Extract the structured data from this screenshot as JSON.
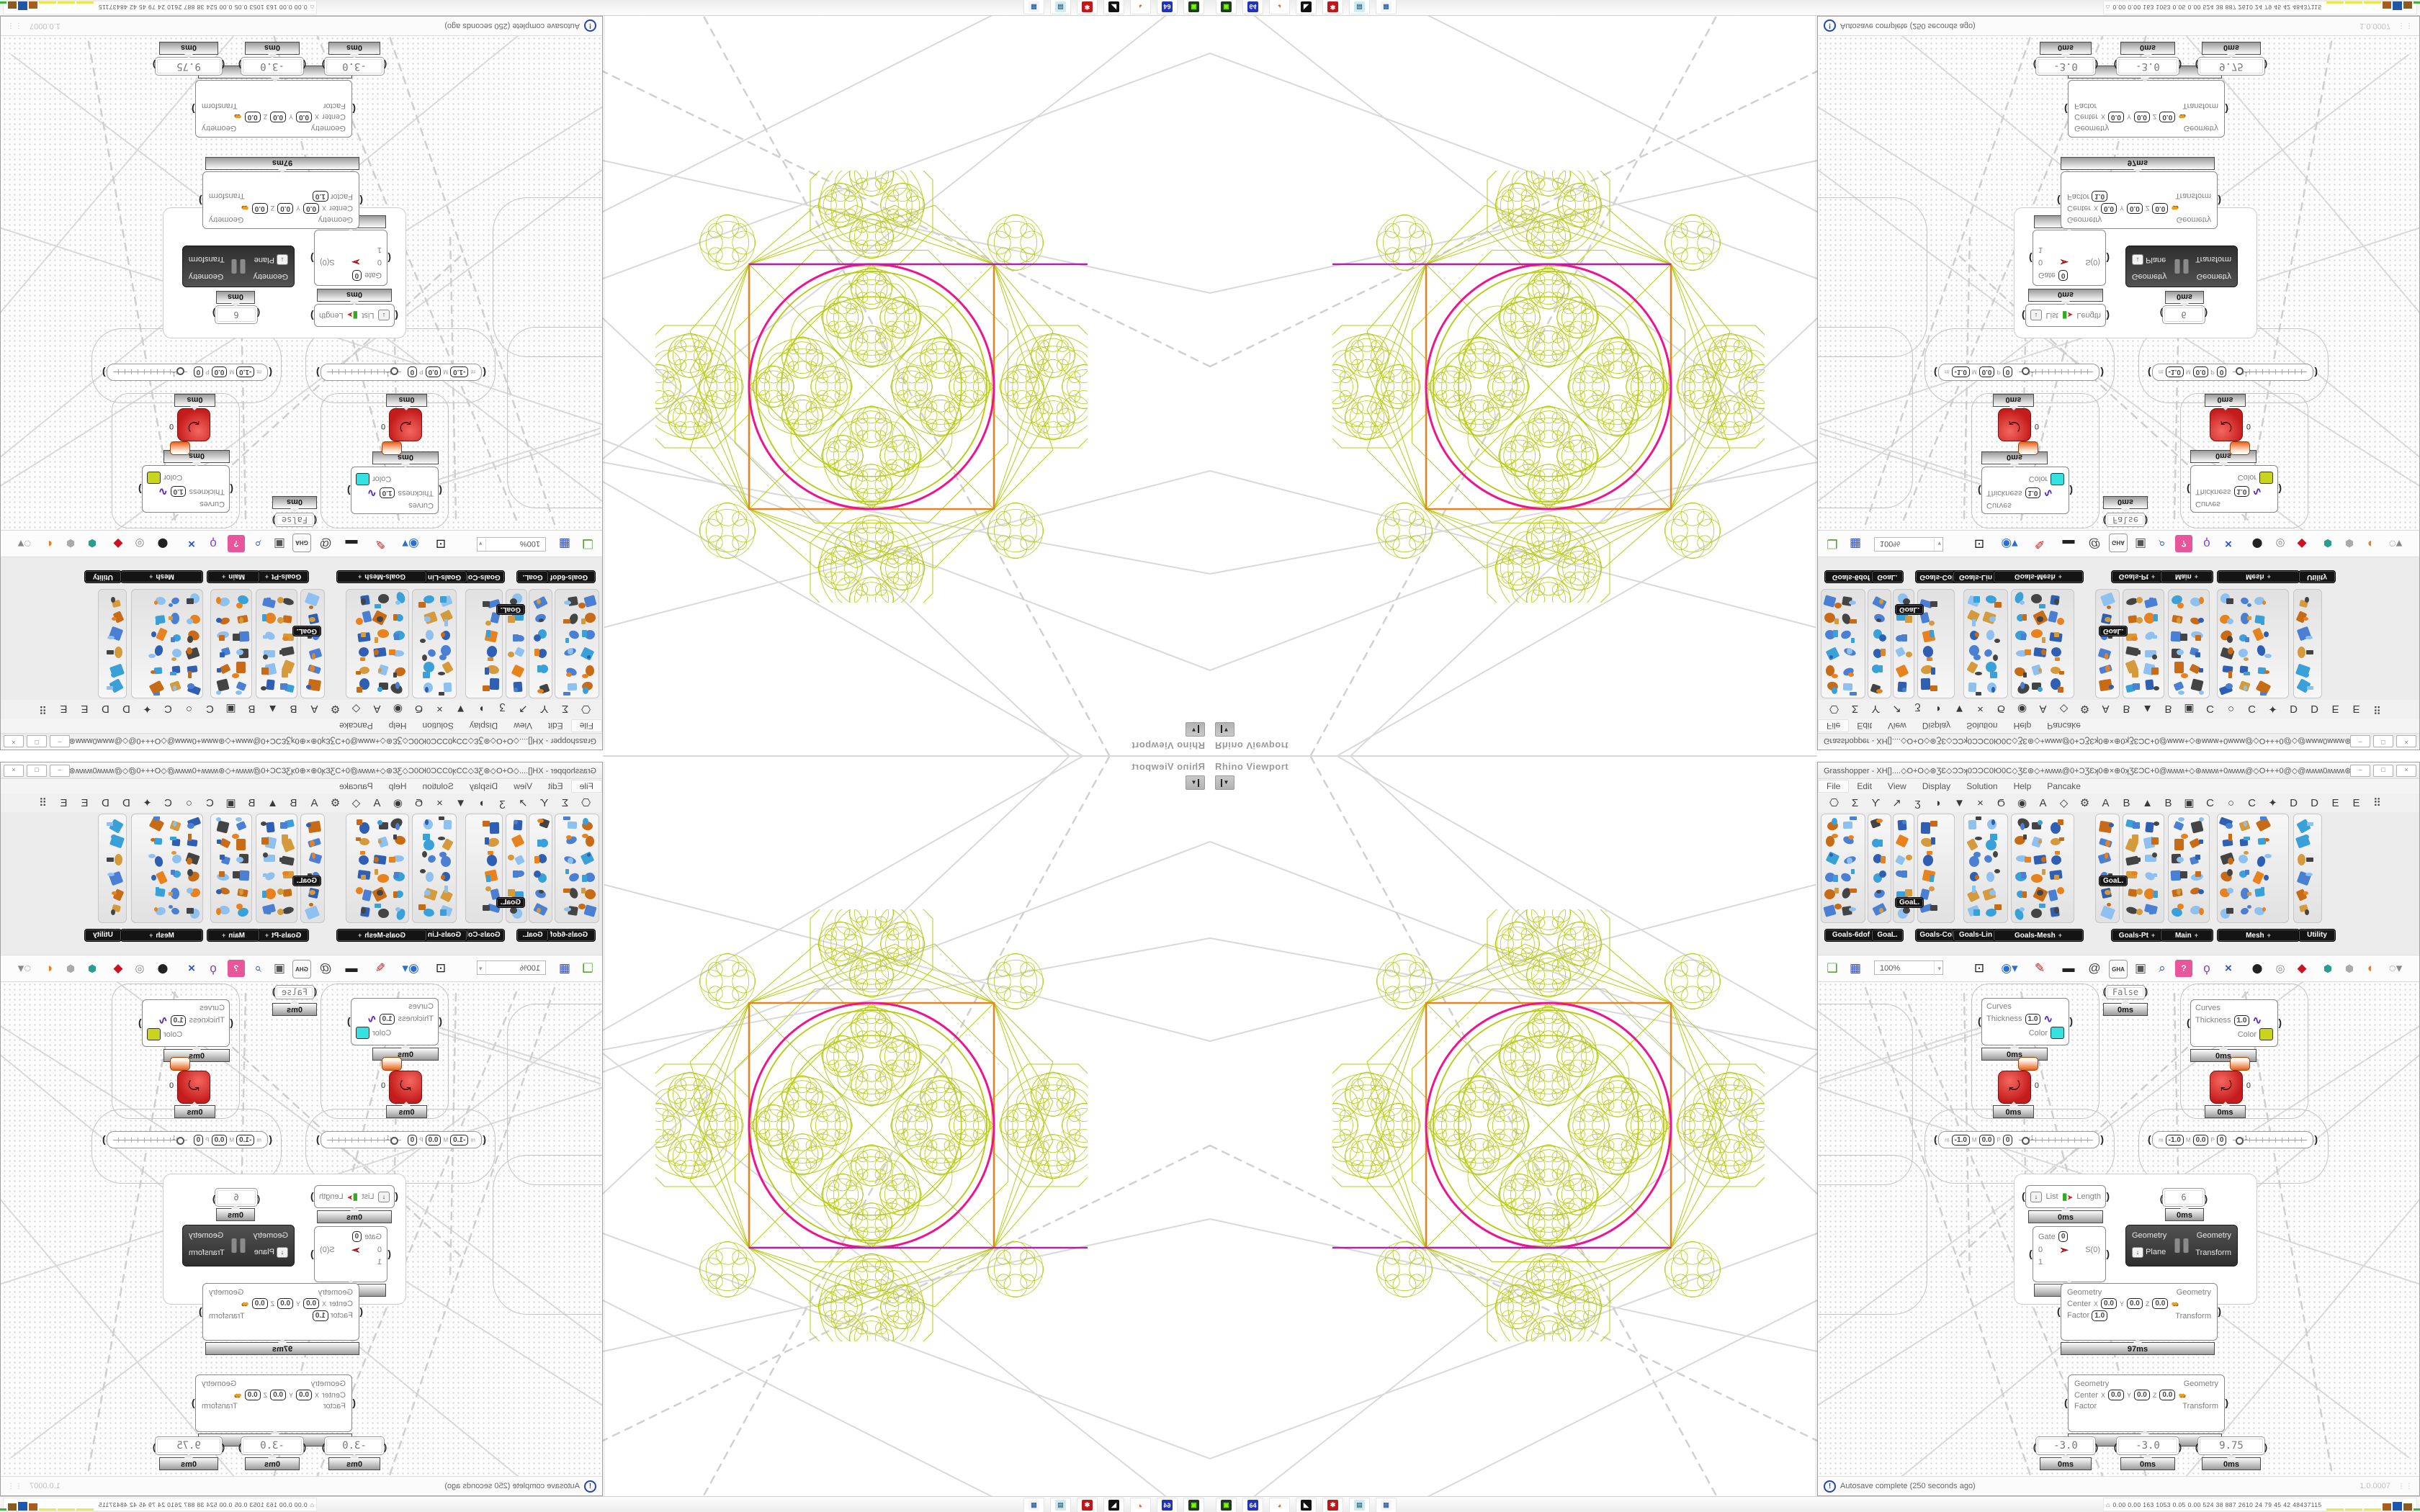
{
  "viewport": {
    "label": "Rhino Viewport",
    "geometry": {
      "green": "#b7cc16",
      "magenta": "#ee1490",
      "orange": "#e8821e",
      "purple": "#a826a8"
    }
  },
  "gh_window": {
    "title": "Grasshopper - XH[]....◇O+O◇⊛ƷƐ◇ƆϽʞ0ƆϽC0Ю0C◇ƷƐ⊛◇+ʍʍʍ@0+ϽƷƐʞ0⊕×⊕0ʞƷƐϽC+0@ʍʍʍ+◇⊛ʍʍʍ+0ʍʍʍ@◇O+++0@◇@ʍʍʍ0ʍʍʍ⊛◇+ʍʍʍ@0+ϽƷƐʞ0⊕×0...",
    "window_buttons": [
      "–",
      "□",
      "×"
    ],
    "menu_items": [
      "File",
      "Edit",
      "View",
      "Display",
      "Solution",
      "Help",
      "Pancake"
    ],
    "category_glyphs": [
      "⎔",
      "Σ",
      "Ƴ",
      "↗",
      "ʒ",
      "◗",
      "▼",
      "×",
      "Ϭ",
      "◉",
      "A",
      "◇",
      "⚙",
      "A",
      "B",
      "▲",
      "B",
      "▣",
      "C",
      "○",
      "C",
      "✦",
      "D",
      "D",
      "E",
      "E",
      "⠿"
    ],
    "tabs": [
      {
        "label": "Goals-6dof",
        "plus": false
      },
      {
        "label": "GoaL.",
        "plus": false
      },
      {
        "label": "Goals-Col",
        "plus": false
      },
      {
        "label": "Goals-Lin",
        "plus": false
      },
      {
        "label": "Goals-Mesh",
        "plus": true
      },
      {
        "label": "Goals-Pt",
        "plus": true
      },
      {
        "label": "Main",
        "plus": true
      },
      {
        "label": "Mesh",
        "plus": true
      },
      {
        "label": "Utility",
        "plus": false
      }
    ],
    "floating_tags": [
      "GoaL.",
      "GoaL."
    ],
    "toolbar": {
      "zoom": "100%",
      "icons": [
        "new-document-icon",
        "save-icon",
        "zoom-extents-icon",
        "view-eye-icon",
        "sketch-icon",
        "camera-icon",
        "mention-icon",
        "gha-icon",
        "window-icon",
        "search-icon",
        "help-box-icon",
        "idea-bulb-icon",
        "wire-display-icon",
        "ink-icon",
        "rings-icon",
        "gem-icon",
        "leaf-teal-icon",
        "leaf-gray-icon",
        "sphere-icon",
        "selection-icon"
      ]
    },
    "status": {
      "autosave": "Autosave complete (250 seconds ago)",
      "version": "1.0.0007",
      "alert_glyph": "!"
    }
  },
  "canvas": {
    "display_a": {
      "in_curves": "Curves",
      "in_thickness": "Thickness",
      "thickness_value": "1.0",
      "in_color": "Color",
      "swatch_color": "#35e2e2",
      "time": "0ms"
    },
    "display_b": {
      "in_curves": "Curves",
      "in_thickness": "Thickness",
      "thickness_value": "1.0",
      "in_color": "Color",
      "swatch_color": "#c9d41c",
      "time": "0ms"
    },
    "toggle_false": {
      "value": "False",
      "time": "0ms"
    },
    "timer_a": {
      "value": "0",
      "time": "0ms"
    },
    "timer_b": {
      "value": "0",
      "time": "0ms"
    },
    "slider_a": {
      "m": "m",
      "m_value": "-1.0",
      "M": "M",
      "M_value": "0.0",
      "p": "P",
      "p_value": "0",
      "tick": "1"
    },
    "slider_b": {
      "m": "m",
      "m_value": "-1.0",
      "M": "M",
      "M_value": "0.0",
      "p": "P",
      "p_value": "0",
      "tick": "1"
    },
    "list_length": {
      "dl": "↓",
      "in_label": "List",
      "out_label": "Length",
      "time": "0ms"
    },
    "panel_six": {
      "value": "6",
      "time": "0ms"
    },
    "gate": {
      "gate_label": "Gate",
      "gate_value": "0",
      "in_zero": "0",
      "in_one": "1",
      "out_label": "S(0)",
      "time": "0ms"
    },
    "transform_dark": {
      "dl": "↓",
      "in_geometry": "Geometry",
      "in_plane": "Plane",
      "out_geometry": "Geometry",
      "out_transform": "Transform"
    },
    "scale_a": {
      "in_geometry": "Geometry",
      "center": "Center",
      "x": "X",
      "x_value": "0.0",
      "y": "Y",
      "y_value": "0.0",
      "z": "Z",
      "z_value": "0.0",
      "factor": "Factor",
      "factor_value": "1.0",
      "out_geometry": "Geometry",
      "out_transform": "Transform",
      "time": "97ms"
    },
    "scale_b": {
      "in_geometry": "Geometry",
      "center": "Center",
      "x": "X",
      "x_value": "0.0",
      "y": "Y",
      "y_value": "0.0",
      "z": "Z",
      "z_value": "0.0",
      "factor": "Factor",
      "out_geometry": "Geometry",
      "out_transform": "Transform",
      "time": "0ms"
    },
    "panel_neg3_a": {
      "value": "-3.0",
      "time": "0ms"
    },
    "panel_neg3_b": {
      "value": "-3.0",
      "time": "0ms"
    },
    "panel_975": {
      "value": "9.75",
      "time": "0ms"
    }
  },
  "taskbar": {
    "icons": [
      {
        "name": "recorder-icon",
        "glyph": "▣",
        "bg": "#1d3b1d",
        "fg": "#7CFC00"
      },
      {
        "name": "floppy-64-icon",
        "glyph": "64",
        "bg": "#2233bb",
        "fg": "#ffffff"
      },
      {
        "name": "firefox-icon",
        "glyph": "◕",
        "bg": "#ffffff",
        "fg": "#e8601c"
      },
      {
        "name": "fox-icon",
        "glyph": "◣",
        "bg": "#111111",
        "fg": "#ffffff"
      },
      {
        "name": "gear-badge-icon",
        "glyph": "✱",
        "bg": "#c01818",
        "fg": "#ffffff"
      },
      {
        "name": "notepad-icon",
        "glyph": "▤",
        "bg": "#cfeaf2",
        "fg": "#4a7a8a"
      },
      {
        "name": "calculator-icon",
        "glyph": "▦",
        "bg": "#f4f4f4",
        "fg": "#3a6ea8"
      }
    ],
    "monitor_prefix": "⌂",
    "monitor_text": "0.00 0.00 163 1053 0.05 0.00 524 38 887 2610 24 79 45 42 48437115",
    "monitor_bars": [
      {
        "c": "#ece84a",
        "w": 24,
        "h": 3
      },
      {
        "c": "#ece84a",
        "w": 24,
        "h": 3
      },
      {
        "c": "#ece84a",
        "w": 24,
        "h": 3
      },
      {
        "c": "#a85c1e",
        "w": 12,
        "h": 10
      },
      {
        "c": "#1e56a8",
        "w": 13,
        "h": 12
      },
      {
        "c": "#8a5a20",
        "w": 12,
        "h": 10
      },
      {
        "c": "#3cb43c",
        "w": 10,
        "h": 3
      },
      {
        "c": "#991111",
        "w": 12,
        "h": 11
      }
    ]
  }
}
